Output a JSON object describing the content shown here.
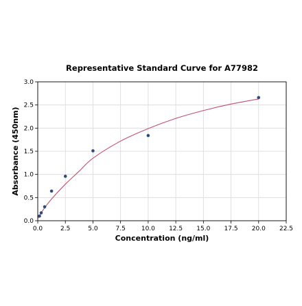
{
  "chart_data": {
    "type": "scatter",
    "title": "Representative Standard Curve for A77982",
    "xlabel": "Concentration (ng/ml)",
    "ylabel": "Absorbance (450nm)",
    "xlim": [
      0,
      22.5
    ],
    "ylim": [
      0,
      3.0
    ],
    "x_ticks": [
      "0.0",
      "2.5",
      "5.0",
      "7.5",
      "10.0",
      "12.5",
      "15.0",
      "17.5",
      "20.0",
      "22.5"
    ],
    "y_ticks": [
      "0.0",
      "0.5",
      "1.0",
      "1.5",
      "2.0",
      "2.5",
      "3.0"
    ],
    "grid": true,
    "series": [
      {
        "kind": "points",
        "x": [
          0.156,
          0.313,
          0.625,
          1.25,
          2.5,
          5.0,
          10.0,
          20.0
        ],
        "y": [
          0.1,
          0.17,
          0.3,
          0.64,
          0.96,
          1.51,
          1.84,
          2.66
        ]
      },
      {
        "kind": "fitted-curve",
        "x": [
          0,
          0.156,
          0.313,
          0.625,
          1.25,
          2.5,
          3.75,
          5.0,
          7.5,
          10.0,
          12.5,
          15.0,
          17.5,
          20.0
        ],
        "y": [
          0.05,
          0.11,
          0.17,
          0.28,
          0.47,
          0.79,
          1.07,
          1.35,
          1.72,
          1.99,
          2.21,
          2.38,
          2.52,
          2.63
        ]
      }
    ],
    "colors": {
      "points": "#2f4b7c",
      "curve": "#c0506e",
      "grid": "#d9d9d9",
      "axis": "#000000"
    }
  }
}
